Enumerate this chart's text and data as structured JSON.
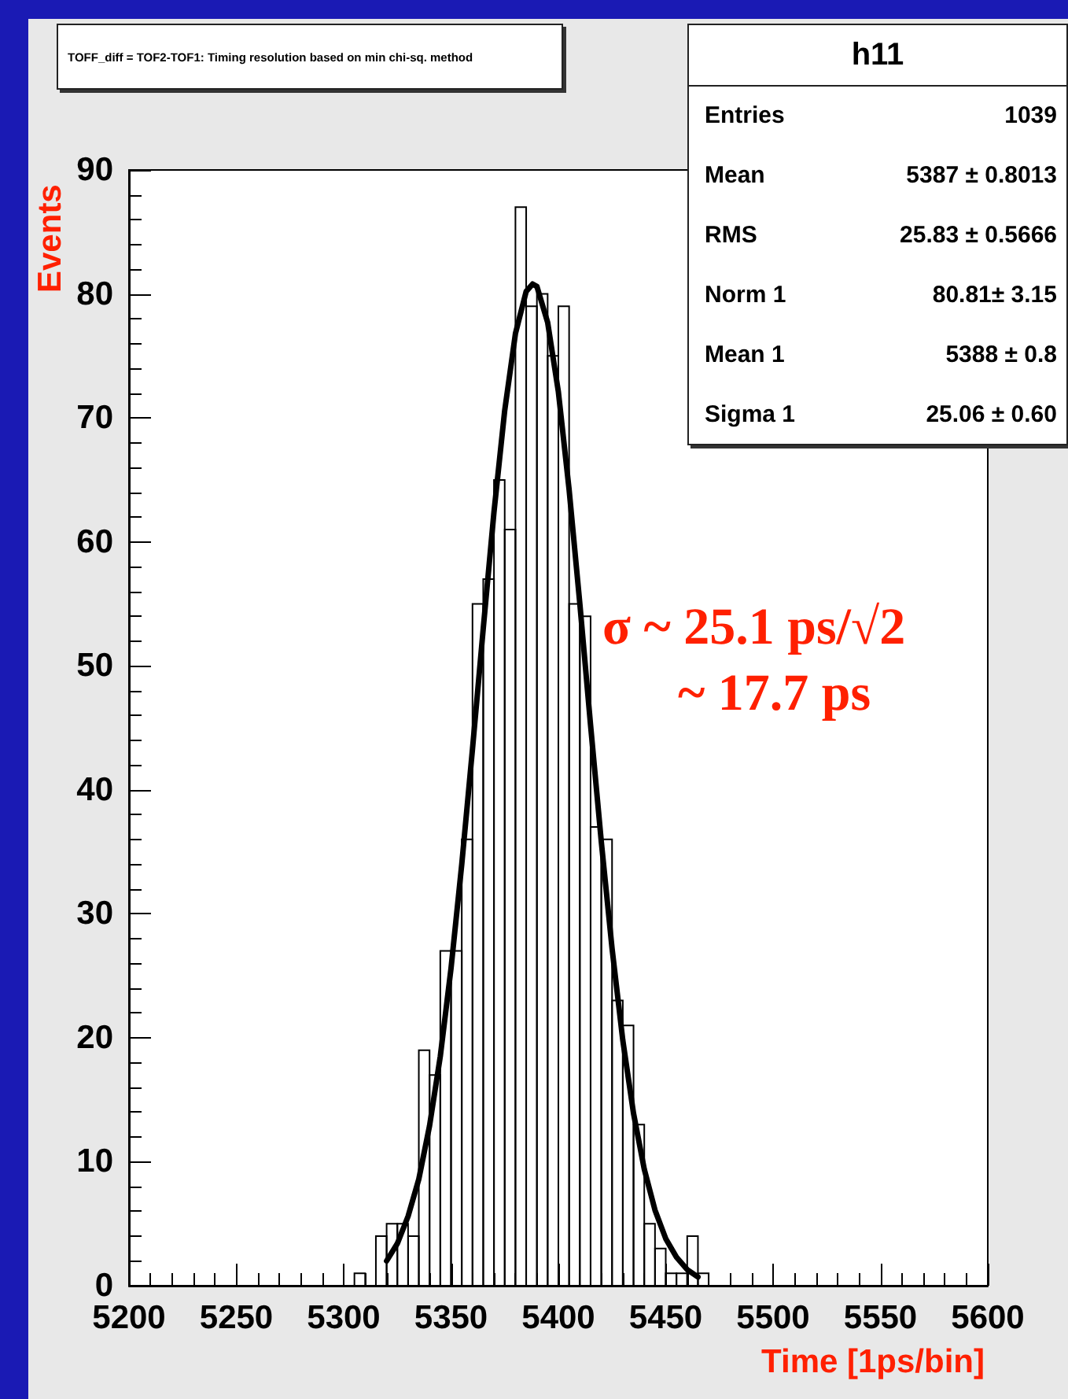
{
  "chart_data": {
    "type": "histogram",
    "title": "TOFF_diff = TOF2-TOF1: Timing resolution based on min chi-sq. method",
    "xlabel": "Time [1ps/bin]",
    "ylabel": "Events",
    "xlim": [
      5200,
      5600
    ],
    "xticks": [
      5200,
      5250,
      5300,
      5350,
      5400,
      5450,
      5500,
      5550,
      5600
    ],
    "ylim": [
      0,
      90
    ],
    "yticks": [
      0,
      10,
      20,
      30,
      40,
      50,
      60,
      70,
      80,
      90
    ],
    "series": [
      {
        "type": "histogram",
        "color": "#000000",
        "bins": [
          5305,
          5310,
          5315,
          5320,
          5325,
          5330,
          5335,
          5340,
          5345,
          5350,
          5355,
          5360,
          5365,
          5370,
          5375,
          5380,
          5385,
          5390,
          5395,
          5400,
          5405,
          5410,
          5415,
          5420,
          5425,
          5430,
          5435,
          5440,
          5445,
          5450,
          5455,
          5460,
          5465,
          5470
        ],
        "values": [
          1,
          0,
          4,
          5,
          5,
          4,
          19,
          17,
          27,
          27,
          36,
          55,
          57,
          65,
          61,
          87,
          79,
          80,
          75,
          79,
          55,
          54,
          37,
          36,
          23,
          21,
          13,
          5,
          3,
          1,
          1,
          4,
          1
        ]
      },
      {
        "type": "line",
        "color": "#000000",
        "x": [
          5320,
          5325,
          5330,
          5335,
          5340,
          5345,
          5350,
          5355,
          5360,
          5365,
          5370,
          5375,
          5380,
          5385,
          5388,
          5390,
          5395,
          5400,
          5405,
          5410,
          5415,
          5420,
          5425,
          5430,
          5435,
          5440,
          5445,
          5450,
          5455,
          5460,
          5465
        ],
        "values": [
          2.0,
          3.4,
          5.6,
          8.6,
          12.9,
          18.5,
          25.6,
          34.0,
          43.3,
          53.0,
          62.4,
          70.6,
          76.8,
          80.2,
          80.8,
          80.6,
          77.7,
          72.1,
          64.2,
          55.0,
          45.2,
          35.8,
          27.2,
          19.8,
          13.9,
          9.4,
          6.1,
          3.8,
          2.3,
          1.3,
          0.7
        ]
      }
    ],
    "annotations": [
      "h11",
      "Entries",
      "1039",
      "Mean",
      "5387 ± 0.8013",
      "RMS",
      "25.83 ± 0.5666",
      "Norm 1",
      "80.81± 3.15",
      "Mean 1",
      "5388 ± 0.8",
      "Sigma 1",
      "25.06 ± 0.60",
      "σ ~ 25.1 ps/√2",
      "~ 17.7 ps"
    ]
  }
}
